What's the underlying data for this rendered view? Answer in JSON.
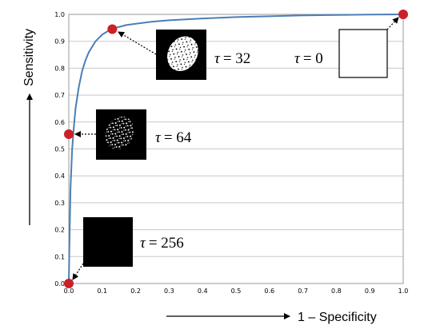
{
  "chart_data": {
    "type": "line",
    "xlabel": "1 – Specificity",
    "ylabel": "Sensitivity",
    "xlim": [
      0,
      1
    ],
    "ylim": [
      0,
      1
    ],
    "x_ticks": [
      "0.0",
      "0.1",
      "0.2",
      "0.3",
      "0.4",
      "0.5",
      "0.6",
      "0.7",
      "0.8",
      "0.9",
      "1.0"
    ],
    "y_ticks": [
      "0.0",
      "0.1",
      "0.2",
      "0.3",
      "0.4",
      "0.5",
      "0.6",
      "0.7",
      "0.8",
      "0.9",
      "1.0"
    ],
    "grid": "horizontal",
    "line_color": "#4a7fb5",
    "marker_color": "#cc1f27",
    "series": [
      {
        "x": [
          0,
          0.002,
          0.005,
          0.01,
          0.015,
          0.02,
          0.03,
          0.04,
          0.05,
          0.06,
          0.08,
          0.1,
          0.12,
          0.14,
          0.17,
          0.2,
          0.25,
          0.3,
          0.4,
          0.5,
          0.6,
          0.7,
          0.8,
          0.9,
          1.0
        ],
        "y": [
          0,
          0.15,
          0.35,
          0.5,
          0.58,
          0.65,
          0.73,
          0.79,
          0.83,
          0.86,
          0.9,
          0.925,
          0.94,
          0.95,
          0.96,
          0.965,
          0.973,
          0.978,
          0.985,
          0.99,
          0.993,
          0.996,
          0.998,
          0.999,
          1.0
        ]
      }
    ],
    "annotations": [
      {
        "label_symbol": "τ",
        "label_value": "= 256",
        "x": 0.0,
        "y": 0.0,
        "thumb": "black"
      },
      {
        "label_symbol": "τ",
        "label_value": "= 64",
        "x": 0.0,
        "y": 0.555,
        "thumb": "sparse"
      },
      {
        "label_symbol": "τ",
        "label_value": "= 32",
        "x": 0.13,
        "y": 0.945,
        "thumb": "dense"
      },
      {
        "label_symbol": "τ",
        "label_value": "= 0",
        "x": 1.0,
        "y": 1.0,
        "thumb": "white"
      }
    ]
  }
}
